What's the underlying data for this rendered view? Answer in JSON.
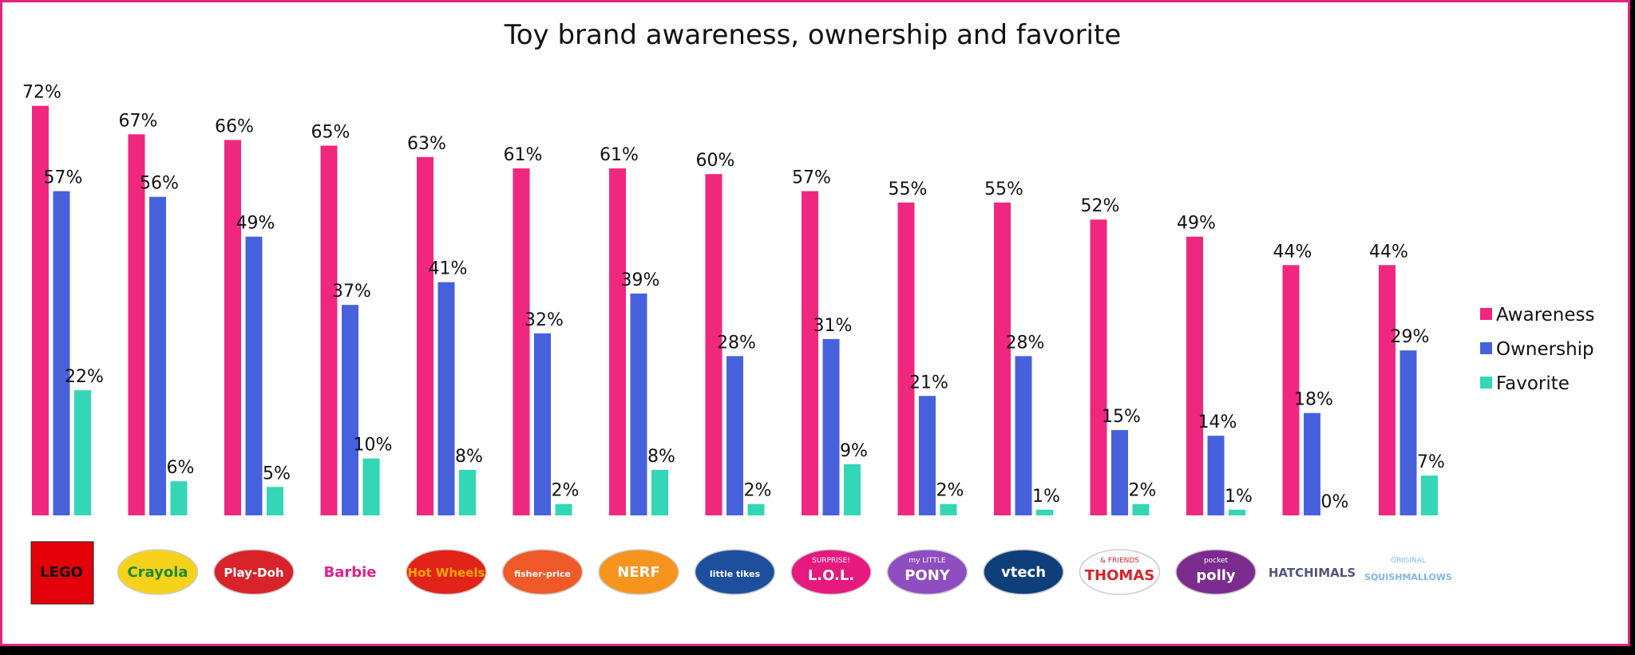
{
  "chart_data": {
    "type": "bar",
    "title": "Toy brand awareness, ownership and favorite",
    "xlabel": "",
    "ylabel": "",
    "ylim": [
      0,
      80
    ],
    "grid": false,
    "legend_position": "right",
    "categories": [
      "LEGO",
      "Crayola",
      "Play-Doh",
      "Barbie",
      "Hot Wheels",
      "fisher-price",
      "NERF",
      "little tikes",
      "L.O.L. SURPRISE!",
      "My Little Pony",
      "vtech",
      "THOMAS & FRIENDS",
      "polly pocket",
      "HATCHIMALS",
      "SQUISHMALLOWS"
    ],
    "series": [
      {
        "name": "Awareness",
        "color": "#f0277f",
        "values": [
          72,
          67,
          66,
          65,
          63,
          61,
          61,
          60,
          57,
          55,
          55,
          52,
          49,
          44,
          44
        ],
        "labels": [
          "72%",
          "67%",
          "66%",
          "65%",
          "63%",
          "61%",
          "61%",
          "60%",
          "57%",
          "55%",
          "55%",
          "52%",
          "49%",
          "44%",
          "44%"
        ]
      },
      {
        "name": "Ownership",
        "color": "#4761dc",
        "values": [
          57,
          56,
          49,
          37,
          41,
          32,
          39,
          28,
          31,
          21,
          28,
          15,
          14,
          18,
          29
        ],
        "labels": [
          "57%",
          "56%",
          "49%",
          "37%",
          "41%",
          "32%",
          "39%",
          "28%",
          "31%",
          "21%",
          "28%",
          "15%",
          "14%",
          "18%",
          "29%"
        ]
      },
      {
        "name": "Favorite",
        "color": "#33d6b5",
        "values": [
          22,
          6,
          5,
          10,
          8,
          2,
          8,
          2,
          9,
          2,
          1,
          2,
          1,
          0,
          7
        ],
        "labels": [
          "22%",
          "6%",
          "5%",
          "10%",
          "8%",
          "2%",
          "8%",
          "2%",
          "9%",
          "2%",
          "1%",
          "2%",
          "1%",
          "0%",
          "7%"
        ]
      }
    ]
  },
  "logos": [
    {
      "text": "LEGO",
      "icon": "lego-logo",
      "color": "#111111",
      "bg": "#e3000b"
    },
    {
      "text": "Crayola",
      "icon": "crayola-logo",
      "color": "#1b8a2e",
      "bg": "#f7d21a"
    },
    {
      "text": "Play-Doh",
      "icon": "play-doh-logo",
      "color": "#ffffff",
      "bg": "#d8232a"
    },
    {
      "text": "Barbie",
      "icon": "barbie-logo",
      "color": "#e0218a",
      "bg": "none"
    },
    {
      "text": "Hot Wheels",
      "icon": "hot-wheels-logo",
      "color": "#f7a800",
      "bg": "#e2231a"
    },
    {
      "text": "fisher-price",
      "icon": "fisher-price-logo",
      "color": "#ffffff",
      "bg": "#f05a28"
    },
    {
      "text": "NERF",
      "icon": "nerf-logo",
      "color": "#ffffff",
      "bg": "#f7941d"
    },
    {
      "text": "little tikes",
      "icon": "little-tikes-logo",
      "color": "#ffffff",
      "bg": "#1d4f9c"
    },
    {
      "text": "L.O.L.",
      "subtext": "SURPRISE!",
      "icon": "lol-surprise-logo",
      "color": "#ffffff",
      "bg": "#e5197e"
    },
    {
      "text": "PONY",
      "subtext": "my LITTLE",
      "icon": "my-little-pony-logo",
      "color": "#ffffff",
      "bg": "#8e4dc1"
    },
    {
      "text": "vtech",
      "icon": "vtech-logo",
      "color": "#ffffff",
      "bg": "#0e3f7a"
    },
    {
      "text": "THOMAS",
      "subtext": "& FRIENDS",
      "icon": "thomas-friends-logo",
      "color": "#d8232a",
      "bg": "#ffffff"
    },
    {
      "text": "polly",
      "subtext": "pocket",
      "icon": "polly-pocket-logo",
      "color": "#ffffff",
      "bg": "#7b2c8e"
    },
    {
      "text": "HATCHIMALS",
      "icon": "hatchimals-logo",
      "color": "#555577",
      "bg": "none"
    },
    {
      "text": "SQUISHMALLOWS",
      "subtext": "ORIGINAL",
      "icon": "squishmallows-logo",
      "color": "#7fb6e8",
      "bg": "none"
    }
  ]
}
